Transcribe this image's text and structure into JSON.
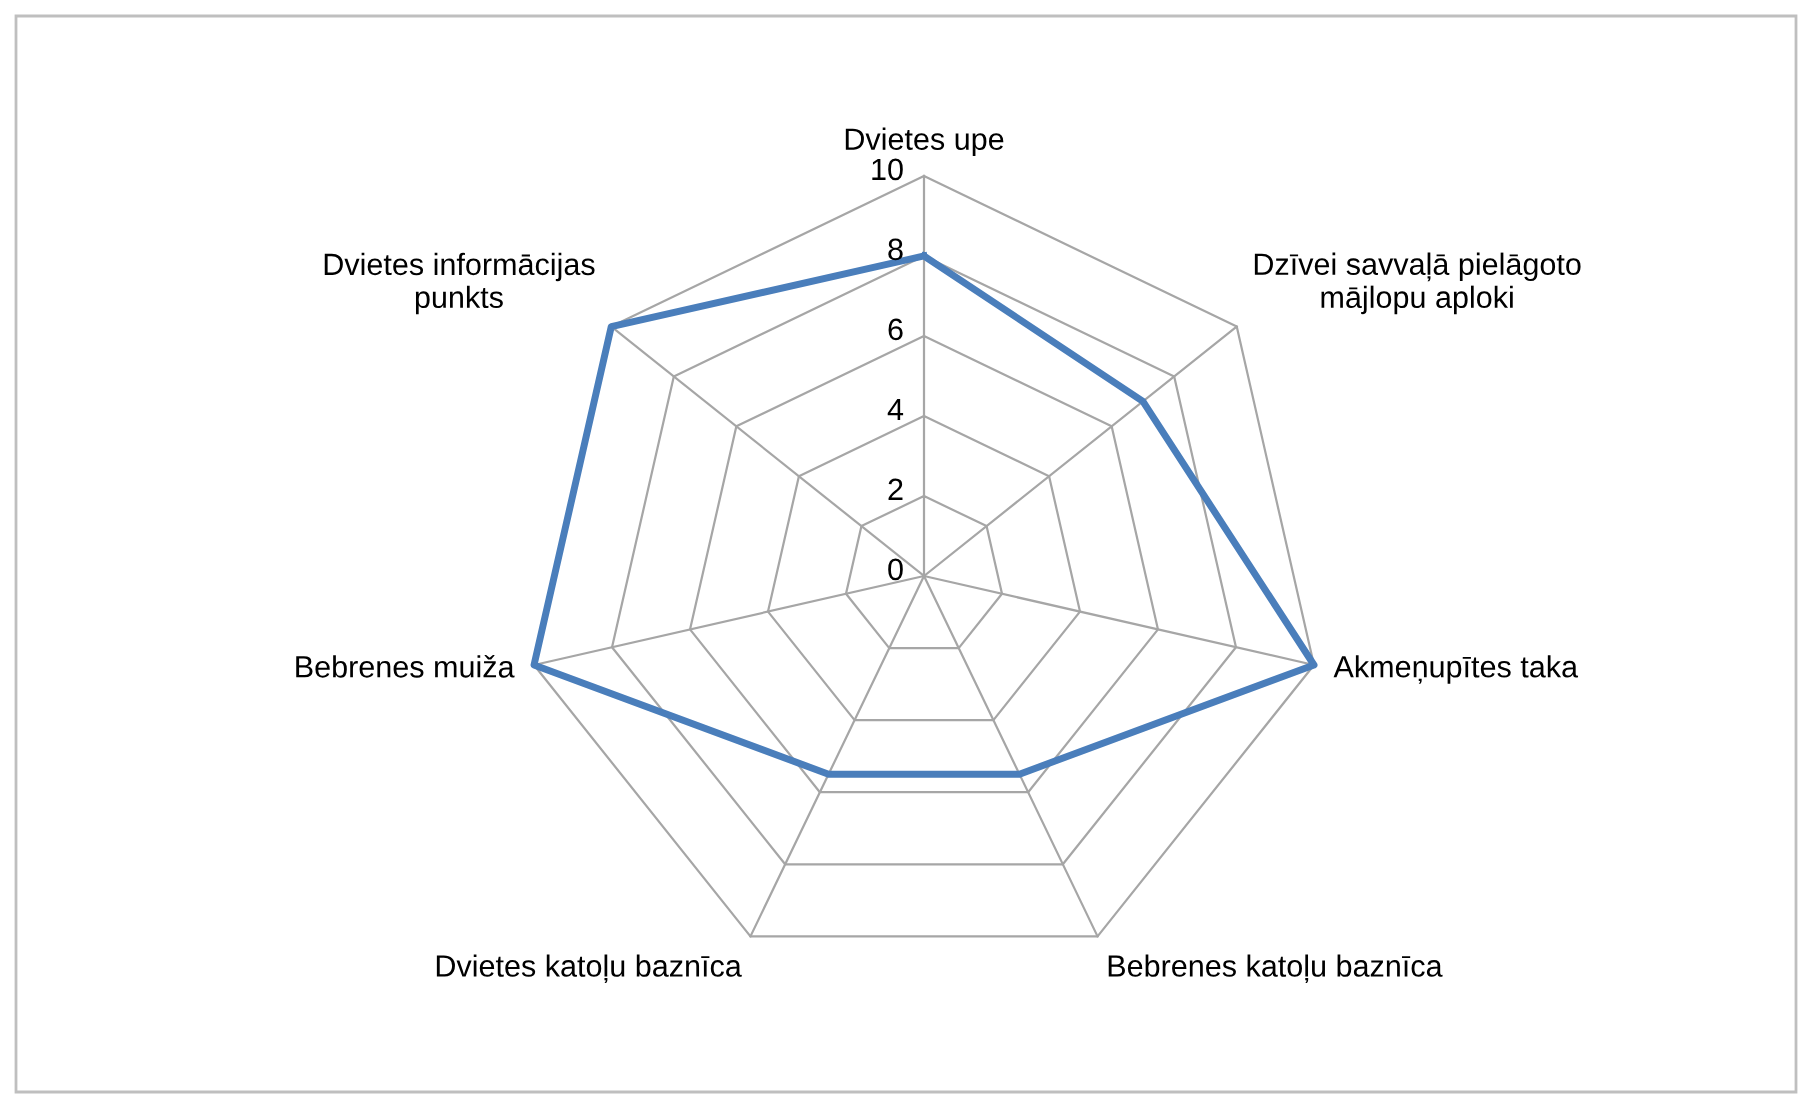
{
  "chart_data": {
    "type": "radar",
    "categories": [
      "Dvietes upe",
      "Dzīvei savvaļā pielāgoto\nmājlopu aploki",
      "Akmeņupītes taka",
      "Bebrenes katoļu baznīca",
      "Dvietes katoļu baznīca",
      "Bebrenes muiža",
      "Dvietes informācijas\npunkts"
    ],
    "series": [
      {
        "color": "#4a7ebb",
        "values": [
          8,
          7,
          10,
          5.5,
          5.5,
          10,
          10
        ]
      }
    ],
    "ylim": [
      0,
      10
    ],
    "yticks": [
      0,
      2,
      4,
      6,
      8,
      10
    ],
    "grid": true,
    "legend": false,
    "marker": "none",
    "line_style": "solid"
  }
}
